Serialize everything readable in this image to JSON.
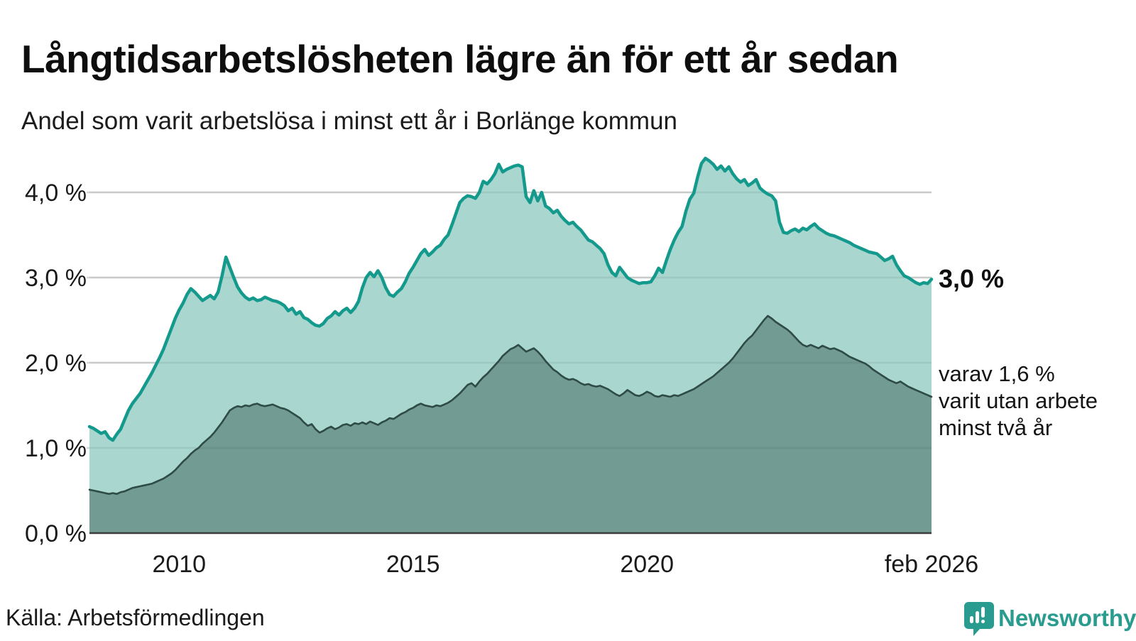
{
  "header": {
    "title": "Långtidsarbetslösheten lägre än för ett år sedan",
    "subtitle": "Andel som varit arbetslösa i minst ett år i Borlänge kommun"
  },
  "annotations": {
    "end_value_label": "3,0 %",
    "secondary_label_lines": [
      "varav 1,6 %",
      "varit utan arbete",
      "minst två år"
    ]
  },
  "footer": {
    "source": "Källa: Arbetsförmedlingen",
    "brand": "Newsworthy"
  },
  "colors": {
    "line_1yr": "#149a8c",
    "fill_1yr": "#a9d6cf",
    "line_2yr": "#2e4b46",
    "fill_2yr": "#729b93",
    "gridline": "#d7d7d7",
    "gridline_overlay": "rgba(30,50,45,0.08)",
    "baseline": "#3c3c3c",
    "brand_teal": "#2a9c8f"
  },
  "chart_data": {
    "type": "area",
    "title": "Långtidsarbetslösheten lägre än för ett år sedan",
    "subtitle": "Andel som varit arbetslösa i minst ett år i Borlänge kommun",
    "unit": "%",
    "frequency": "monthly",
    "x_start": "2008-02",
    "x_end": "2026-02",
    "ylim": [
      0,
      4.6
    ],
    "grid": true,
    "yticks": [
      {
        "v": 0,
        "label": "0,0 %"
      },
      {
        "v": 1,
        "label": "1,0 %"
      },
      {
        "v": 2,
        "label": "2,0 %"
      },
      {
        "v": 3,
        "label": "3,0 %"
      },
      {
        "v": 4,
        "label": "4,0 %"
      }
    ],
    "xticks": [
      {
        "label": "2010",
        "month_index": 23
      },
      {
        "label": "2015",
        "month_index": 83
      },
      {
        "label": "2020",
        "month_index": 143
      },
      {
        "label": "feb 2026",
        "month_index": 216
      }
    ],
    "series": [
      {
        "name": "Arbetslösa minst ett år",
        "end_value": 3.0,
        "values": [
          1.25,
          1.23,
          1.2,
          1.17,
          1.19,
          1.12,
          1.09,
          1.16,
          1.22,
          1.33,
          1.44,
          1.52,
          1.58,
          1.64,
          1.72,
          1.8,
          1.88,
          1.97,
          2.06,
          2.16,
          2.28,
          2.4,
          2.52,
          2.62,
          2.7,
          2.8,
          2.87,
          2.83,
          2.78,
          2.73,
          2.76,
          2.79,
          2.75,
          2.83,
          3.02,
          3.24,
          3.12,
          3.0,
          2.89,
          2.82,
          2.77,
          2.74,
          2.76,
          2.73,
          2.74,
          2.77,
          2.75,
          2.73,
          2.72,
          2.7,
          2.67,
          2.61,
          2.64,
          2.57,
          2.6,
          2.53,
          2.51,
          2.47,
          2.44,
          2.43,
          2.46,
          2.52,
          2.55,
          2.6,
          2.56,
          2.61,
          2.64,
          2.59,
          2.64,
          2.72,
          2.88,
          3.0,
          3.06,
          3.01,
          3.08,
          3.0,
          2.88,
          2.8,
          2.78,
          2.83,
          2.87,
          2.95,
          3.05,
          3.12,
          3.2,
          3.28,
          3.33,
          3.26,
          3.3,
          3.35,
          3.38,
          3.45,
          3.5,
          3.62,
          3.75,
          3.88,
          3.93,
          3.96,
          3.95,
          3.93,
          4.0,
          4.13,
          4.1,
          4.15,
          4.22,
          4.33,
          4.24,
          4.27,
          4.29,
          4.31,
          4.32,
          4.3,
          3.95,
          3.88,
          4.02,
          3.9,
          4.0,
          3.84,
          3.81,
          3.76,
          3.79,
          3.72,
          3.67,
          3.63,
          3.65,
          3.6,
          3.56,
          3.5,
          3.44,
          3.42,
          3.38,
          3.34,
          3.28,
          3.15,
          3.06,
          3.02,
          3.12,
          3.06,
          3.0,
          2.97,
          2.95,
          2.93,
          2.94,
          2.94,
          2.95,
          3.02,
          3.11,
          3.06,
          3.2,
          3.33,
          3.44,
          3.53,
          3.6,
          3.78,
          3.92,
          3.99,
          4.18,
          4.34,
          4.4,
          4.37,
          4.33,
          4.27,
          4.31,
          4.25,
          4.3,
          4.22,
          4.16,
          4.12,
          4.15,
          4.08,
          4.11,
          4.15,
          4.05,
          4.01,
          3.98,
          3.96,
          3.9,
          3.65,
          3.53,
          3.52,
          3.55,
          3.57,
          3.54,
          3.58,
          3.56,
          3.6,
          3.63,
          3.58,
          3.55,
          3.52,
          3.5,
          3.49,
          3.47,
          3.45,
          3.43,
          3.41,
          3.38,
          3.36,
          3.34,
          3.32,
          3.3,
          3.29,
          3.28,
          3.24,
          3.2,
          3.22,
          3.25,
          3.15,
          3.08,
          3.02,
          3.0,
          2.97,
          2.94,
          2.92,
          2.94,
          2.93,
          2.98
        ]
      },
      {
        "name": "varav utan arbete minst två år",
        "end_value": 1.6,
        "values": [
          0.51,
          0.5,
          0.49,
          0.48,
          0.47,
          0.46,
          0.47,
          0.46,
          0.48,
          0.49,
          0.51,
          0.53,
          0.54,
          0.55,
          0.56,
          0.57,
          0.58,
          0.6,
          0.62,
          0.64,
          0.67,
          0.7,
          0.74,
          0.79,
          0.84,
          0.88,
          0.93,
          0.97,
          1.0,
          1.05,
          1.09,
          1.13,
          1.18,
          1.24,
          1.3,
          1.37,
          1.44,
          1.47,
          1.49,
          1.48,
          1.5,
          1.49,
          1.51,
          1.52,
          1.5,
          1.49,
          1.5,
          1.51,
          1.49,
          1.47,
          1.46,
          1.44,
          1.41,
          1.38,
          1.35,
          1.3,
          1.26,
          1.28,
          1.22,
          1.18,
          1.2,
          1.23,
          1.25,
          1.22,
          1.24,
          1.27,
          1.28,
          1.26,
          1.29,
          1.28,
          1.3,
          1.28,
          1.31,
          1.29,
          1.27,
          1.3,
          1.32,
          1.35,
          1.34,
          1.37,
          1.4,
          1.42,
          1.45,
          1.47,
          1.5,
          1.52,
          1.5,
          1.49,
          1.48,
          1.5,
          1.49,
          1.51,
          1.53,
          1.56,
          1.6,
          1.64,
          1.69,
          1.74,
          1.76,
          1.72,
          1.78,
          1.83,
          1.87,
          1.92,
          1.97,
          2.02,
          2.08,
          2.12,
          2.16,
          2.18,
          2.21,
          2.17,
          2.13,
          2.15,
          2.17,
          2.13,
          2.08,
          2.02,
          1.97,
          1.92,
          1.89,
          1.85,
          1.82,
          1.8,
          1.81,
          1.79,
          1.76,
          1.74,
          1.75,
          1.73,
          1.72,
          1.73,
          1.71,
          1.69,
          1.66,
          1.63,
          1.61,
          1.64,
          1.68,
          1.65,
          1.62,
          1.61,
          1.63,
          1.66,
          1.64,
          1.61,
          1.6,
          1.62,
          1.61,
          1.6,
          1.62,
          1.61,
          1.63,
          1.65,
          1.67,
          1.69,
          1.72,
          1.75,
          1.78,
          1.81,
          1.84,
          1.88,
          1.92,
          1.96,
          2.0,
          2.05,
          2.11,
          2.17,
          2.23,
          2.28,
          2.32,
          2.38,
          2.44,
          2.5,
          2.55,
          2.52,
          2.48,
          2.45,
          2.42,
          2.39,
          2.35,
          2.3,
          2.25,
          2.21,
          2.19,
          2.21,
          2.19,
          2.17,
          2.2,
          2.18,
          2.16,
          2.17,
          2.15,
          2.13,
          2.1,
          2.07,
          2.05,
          2.03,
          2.01,
          1.99,
          1.96,
          1.92,
          1.89,
          1.86,
          1.83,
          1.8,
          1.78,
          1.76,
          1.78,
          1.75,
          1.72,
          1.7,
          1.68,
          1.66,
          1.64,
          1.62,
          1.6
        ]
      }
    ]
  }
}
